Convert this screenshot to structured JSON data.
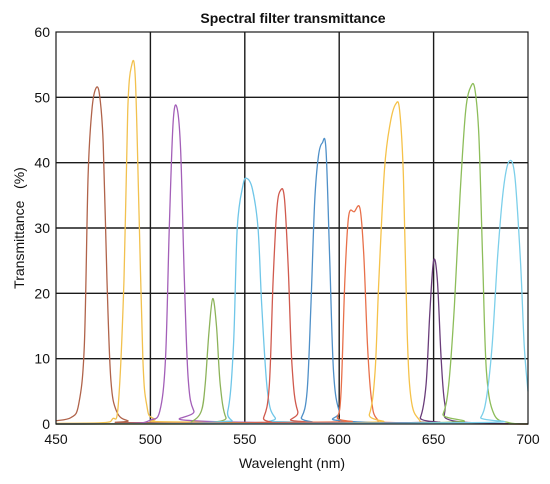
{
  "chart_data": {
    "type": "line",
    "title": "Spectral filter transmittance",
    "xlabel": "Wavelenght (nm)",
    "ylabel": "Transmittance   (%)",
    "xlim": [
      450,
      700
    ],
    "ylim": [
      0,
      60
    ],
    "xticks": [
      450,
      500,
      550,
      600,
      650,
      700
    ],
    "yticks": [
      0,
      10,
      20,
      30,
      40,
      50,
      60
    ],
    "grid": true,
    "legend": "none",
    "series": [
      {
        "color": "#b0634a",
        "points": [
          [
            450,
            0.5
          ],
          [
            458,
            1
          ],
          [
            462,
            3
          ],
          [
            465,
            12
          ],
          [
            467,
            38
          ],
          [
            469,
            48
          ],
          [
            471,
            51.3
          ],
          [
            473,
            50.5
          ],
          [
            475,
            43
          ],
          [
            477,
            22
          ],
          [
            479,
            7
          ],
          [
            482,
            2
          ],
          [
            488,
            0.5
          ],
          [
            500,
            0.2
          ],
          [
            700,
            0
          ]
        ]
      },
      {
        "color": "#f2c14e",
        "points": [
          [
            450,
            0.1
          ],
          [
            475,
            0.2
          ],
          [
            480,
            0.8
          ],
          [
            483,
            3
          ],
          [
            486,
            22
          ],
          [
            488,
            48
          ],
          [
            490,
            54.8
          ],
          [
            492,
            53
          ],
          [
            494,
            32
          ],
          [
            496,
            10
          ],
          [
            498,
            3
          ],
          [
            502,
            0.8
          ],
          [
            520,
            0.3
          ],
          [
            700,
            0
          ]
        ]
      },
      {
        "color": "#a35fb8",
        "points": [
          [
            450,
            0
          ],
          [
            490,
            0.1
          ],
          [
            500,
            0.6
          ],
          [
            505,
            2
          ],
          [
            508,
            10
          ],
          [
            510,
            30
          ],
          [
            512,
            46
          ],
          [
            514,
            48.5
          ],
          [
            516,
            42
          ],
          [
            518,
            22
          ],
          [
            520,
            7
          ],
          [
            523,
            2
          ],
          [
            530,
            0.4
          ],
          [
            700,
            0
          ]
        ]
      },
      {
        "color": "#8db35a",
        "points": [
          [
            450,
            0
          ],
          [
            515,
            0.1
          ],
          [
            522,
            0.4
          ],
          [
            527,
            2
          ],
          [
            529,
            6
          ],
          [
            531,
            14
          ],
          [
            533,
            19.2
          ],
          [
            535,
            15
          ],
          [
            537,
            6
          ],
          [
            540,
            1
          ],
          [
            546,
            0.2
          ],
          [
            700,
            0
          ]
        ]
      },
      {
        "color": "#6fc6e8",
        "points": [
          [
            450,
            0
          ],
          [
            535,
            0.3
          ],
          [
            541,
            2
          ],
          [
            544,
            12
          ],
          [
            546,
            30
          ],
          [
            549,
            36.5
          ],
          [
            551,
            37.6
          ],
          [
            554,
            36
          ],
          [
            557,
            30
          ],
          [
            559,
            18
          ],
          [
            562,
            5
          ],
          [
            566,
            1
          ],
          [
            575,
            0.3
          ],
          [
            700,
            0
          ]
        ]
      },
      {
        "color": "#d05a4e",
        "points": [
          [
            450,
            0
          ],
          [
            555,
            0.2
          ],
          [
            560,
            1
          ],
          [
            563,
            6
          ],
          [
            565,
            22
          ],
          [
            567,
            33
          ],
          [
            569,
            35.8
          ],
          [
            571,
            34.5
          ],
          [
            573,
            24
          ],
          [
            575,
            9
          ],
          [
            578,
            2
          ],
          [
            585,
            0.3
          ],
          [
            700,
            0
          ]
        ]
      },
      {
        "color": "#4f90c8",
        "points": [
          [
            450,
            0
          ],
          [
            575,
            0.2
          ],
          [
            580,
            1
          ],
          [
            583,
            5
          ],
          [
            585,
            18
          ],
          [
            587,
            34
          ],
          [
            589,
            41
          ],
          [
            591,
            43
          ],
          [
            593,
            42
          ],
          [
            595,
            25
          ],
          [
            597,
            8
          ],
          [
            600,
            2
          ],
          [
            605,
            0.4
          ],
          [
            700,
            0
          ]
        ]
      },
      {
        "color": "#e8704a",
        "points": [
          [
            450,
            0
          ],
          [
            595,
            0.3
          ],
          [
            599,
            1
          ],
          [
            601,
            5
          ],
          [
            603,
            22
          ],
          [
            605,
            31.8
          ],
          [
            608,
            32.5
          ],
          [
            611,
            33
          ],
          [
            613,
            26
          ],
          [
            615,
            12
          ],
          [
            617,
            4
          ],
          [
            620,
            0.8
          ],
          [
            630,
            0.2
          ],
          [
            700,
            0
          ]
        ]
      },
      {
        "color": "#f5c24a",
        "points": [
          [
            450,
            0
          ],
          [
            610,
            0.2
          ],
          [
            616,
            1.5
          ],
          [
            619,
            8
          ],
          [
            621,
            22
          ],
          [
            624,
            39
          ],
          [
            627,
            46
          ],
          [
            630,
            49
          ],
          [
            632,
            48
          ],
          [
            634,
            38
          ],
          [
            636,
            14
          ],
          [
            638,
            4
          ],
          [
            642,
            0.8
          ],
          [
            650,
            0.2
          ],
          [
            700,
            0
          ]
        ]
      },
      {
        "color": "#6a3d7a",
        "points": [
          [
            450,
            0
          ],
          [
            638,
            0.2
          ],
          [
            643,
            1
          ],
          [
            646,
            6
          ],
          [
            648,
            17
          ],
          [
            650,
            25
          ],
          [
            652,
            22
          ],
          [
            654,
            10
          ],
          [
            656,
            3
          ],
          [
            660,
            0.5
          ],
          [
            700,
            0
          ]
        ]
      },
      {
        "color": "#8dbd5a",
        "points": [
          [
            450,
            0
          ],
          [
            650,
            0.2
          ],
          [
            655,
            1.5
          ],
          [
            658,
            6
          ],
          [
            661,
            18
          ],
          [
            664,
            35
          ],
          [
            667,
            48
          ],
          [
            670,
            51.8
          ],
          [
            672,
            51
          ],
          [
            674,
            44
          ],
          [
            676,
            25
          ],
          [
            678,
            8
          ],
          [
            682,
            1.5
          ],
          [
            690,
            0.2
          ],
          [
            700,
            0
          ]
        ]
      },
      {
        "color": "#7ccfea",
        "points": [
          [
            450,
            0
          ],
          [
            670,
            0.2
          ],
          [
            675,
            1
          ],
          [
            678,
            4
          ],
          [
            681,
            12
          ],
          [
            684,
            26
          ],
          [
            687,
            36
          ],
          [
            690,
            40.2
          ],
          [
            693,
            38
          ],
          [
            696,
            25
          ],
          [
            698,
            12
          ],
          [
            700,
            5
          ]
        ]
      }
    ]
  }
}
